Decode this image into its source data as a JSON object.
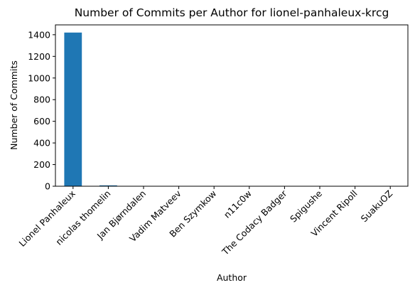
{
  "chart_data": {
    "type": "bar",
    "title": "Number of Commits per Author for lionel-panhaleux-krcg",
    "xlabel": "Author",
    "ylabel": "Number of Commits",
    "categories": [
      "Lionel Panhaleux",
      "nicolas thomelin",
      "Jan Bjørndalen",
      "Vadim Matveev",
      "Ben Szymkow",
      "n11c0w",
      "The Codacy Badger",
      "Spigushe",
      "Vincent Ripoll",
      "SuakuOZ"
    ],
    "values": [
      1420,
      8,
      2,
      1,
      1,
      1,
      1,
      1,
      1,
      1
    ],
    "ylim": [
      0,
      1491
    ],
    "yticks": [
      0,
      200,
      400,
      600,
      800,
      1000,
      1200,
      1400
    ],
    "bar_color": "#1f77b4",
    "grid": false,
    "legend": "none"
  }
}
